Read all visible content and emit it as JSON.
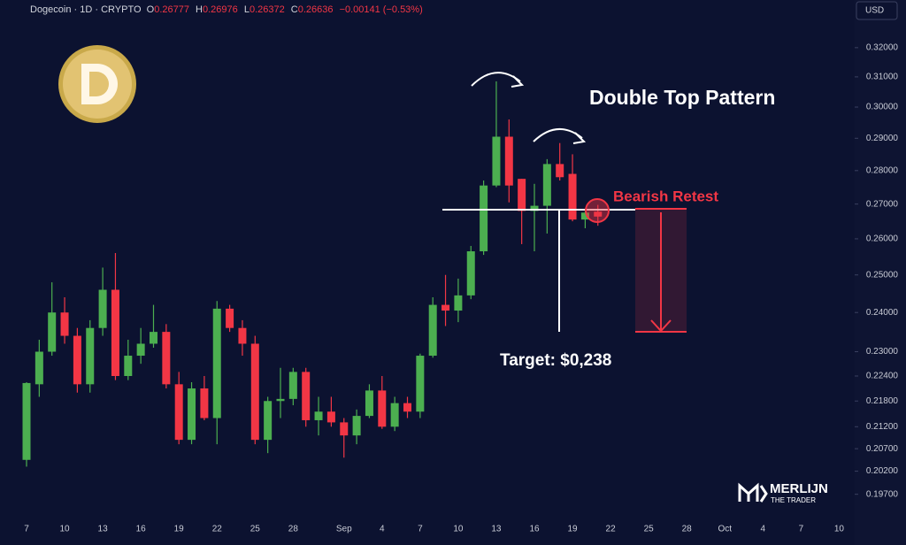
{
  "chart_data": {
    "type": "candlestick",
    "symbol": "Dogecoin · 1D · CRYPTO",
    "ohlc_header": [
      {
        "key": "O",
        "value": "0.26777"
      },
      {
        "key": "H",
        "value": "0.26976"
      },
      {
        "key": "L",
        "value": "0.26372"
      },
      {
        "key": "C",
        "value": "0.26636"
      }
    ],
    "change": "−0.00141 (−0.53%)",
    "currency": "USD",
    "title": "Double Top Pattern",
    "annotations": [
      "Bearish Retest",
      "Target: $0,238"
    ],
    "watermark": [
      "MERLIJN",
      "THE TRADER"
    ],
    "categories": [
      "7",
      null,
      null,
      "10",
      null,
      null,
      "13",
      null,
      null,
      "16",
      null,
      null,
      "19",
      null,
      null,
      "22",
      null,
      null,
      "25",
      null,
      null,
      "28",
      null,
      null,
      null,
      "Sep",
      null,
      null,
      "4",
      null,
      null,
      "7",
      null,
      null,
      "10",
      null,
      null,
      "13",
      null,
      null,
      "16",
      null,
      null,
      "19",
      null,
      null,
      "22",
      null,
      null,
      "25",
      null,
      null,
      "28",
      null,
      null,
      "Oct",
      null,
      null,
      "4",
      null,
      null,
      "7",
      null,
      null,
      "10"
    ],
    "open": [
      0.2045,
      0.222,
      0.23,
      0.24,
      0.234,
      0.222,
      0.236,
      0.246,
      0.224,
      0.229,
      0.232,
      0.235,
      0.222,
      0.209,
      0.221,
      0.214,
      0.241,
      0.236,
      0.232,
      0.209,
      0.218,
      0.2185,
      0.225,
      0.2135,
      0.2155,
      0.213,
      0.21,
      0.2145,
      0.2205,
      0.212,
      0.2175,
      0.2155,
      0.229,
      0.242,
      0.2405,
      0.2445,
      0.2565,
      0.2755,
      0.2905,
      0.2775,
      0.268,
      0.2695,
      0.282,
      0.279,
      0.2655,
      0.26777,
      null,
      null,
      null,
      null,
      null,
      null,
      null,
      null,
      null,
      null,
      null,
      null,
      null,
      null,
      null,
      null,
      null,
      null,
      null
    ],
    "high": [
      0.2225,
      0.233,
      0.248,
      0.244,
      0.236,
      0.238,
      0.252,
      0.256,
      0.233,
      0.236,
      0.242,
      0.237,
      0.225,
      0.2225,
      0.224,
      0.243,
      0.242,
      0.238,
      0.234,
      0.219,
      0.226,
      0.226,
      0.226,
      0.219,
      0.219,
      0.214,
      0.216,
      0.222,
      0.224,
      0.219,
      0.219,
      0.2295,
      0.244,
      0.25,
      0.249,
      0.258,
      0.277,
      0.3085,
      0.296,
      0.2775,
      0.276,
      0.2835,
      0.2885,
      0.285,
      0.268,
      0.26976,
      null,
      null,
      null,
      null,
      null,
      null,
      null,
      null,
      null,
      null,
      null,
      null,
      null,
      null,
      null,
      null,
      null,
      null,
      null
    ],
    "low": [
      0.203,
      0.219,
      0.229,
      0.232,
      0.22,
      0.22,
      0.234,
      0.223,
      0.223,
      0.227,
      0.231,
      0.221,
      0.208,
      0.208,
      0.2135,
      0.208,
      0.235,
      0.229,
      0.208,
      0.206,
      0.214,
      0.217,
      0.212,
      0.21,
      0.212,
      0.205,
      0.208,
      0.214,
      0.2115,
      0.211,
      0.214,
      0.214,
      0.2285,
      0.2365,
      0.2375,
      0.2435,
      0.2555,
      0.275,
      0.2705,
      0.2585,
      0.2565,
      0.2615,
      0.277,
      0.265,
      0.263,
      0.26372,
      null,
      null,
      null,
      null,
      null,
      null,
      null,
      null,
      null,
      null,
      null,
      null,
      null,
      null,
      null,
      null,
      null,
      null,
      null
    ],
    "close": [
      0.2223,
      0.23,
      0.24,
      0.234,
      0.222,
      0.236,
      0.246,
      0.224,
      0.229,
      0.232,
      0.235,
      0.222,
      0.209,
      0.221,
      0.214,
      0.241,
      0.236,
      0.232,
      0.209,
      0.218,
      0.2185,
      0.225,
      0.2135,
      0.2155,
      0.213,
      0.21,
      0.2145,
      0.2205,
      0.212,
      0.2175,
      0.2155,
      0.229,
      0.242,
      0.2405,
      0.2445,
      0.2565,
      0.2755,
      0.2905,
      0.2755,
      0.268,
      0.2695,
      0.282,
      0.278,
      0.2655,
      0.2675,
      0.26636,
      null,
      null,
      null,
      null,
      null,
      null,
      null,
      null,
      null,
      null,
      null,
      null,
      null,
      null,
      null,
      null,
      null,
      null,
      null
    ],
    "up_color": "#4caf50",
    "down_color": "#f23645",
    "log_scale": true,
    "grid": false,
    "ylim": [
      0.193,
      0.337
    ],
    "yticks": [
      {
        "value": 0.32,
        "label": "0.32000"
      },
      {
        "value": 0.31,
        "label": "0.31000"
      },
      {
        "value": 0.3,
        "label": "0.30000"
      },
      {
        "value": 0.29,
        "label": "0.29000"
      },
      {
        "value": 0.28,
        "label": "0.28000"
      },
      {
        "value": 0.27,
        "label": "0.27000"
      },
      {
        "value": 0.26,
        "label": "0.26000"
      },
      {
        "value": 0.25,
        "label": "0.25000"
      },
      {
        "value": 0.24,
        "label": "0.24000"
      },
      {
        "value": 0.23,
        "label": "0.23000"
      },
      {
        "value": 0.224,
        "label": "0.22400"
      },
      {
        "value": 0.218,
        "label": "0.21800"
      },
      {
        "value": 0.212,
        "label": "0.21200"
      },
      {
        "value": 0.207,
        "label": "0.20700"
      },
      {
        "value": 0.202,
        "label": "0.20200"
      },
      {
        "value": 0.197,
        "label": "0.19700"
      }
    ]
  }
}
